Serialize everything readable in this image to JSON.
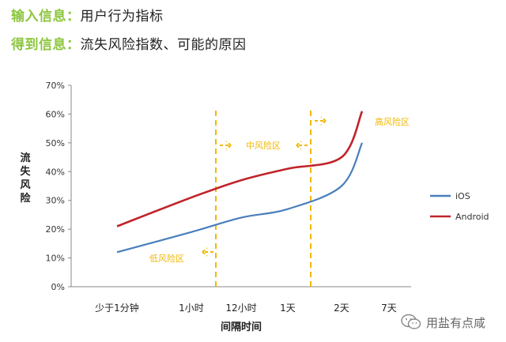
{
  "header": {
    "line1_label": "输入信息：",
    "line1_value": "用户行为指标",
    "line2_label": "得到信息：",
    "line2_value": "流失风险指数、可能的原因"
  },
  "watermark": {
    "text": "用盐有点咸",
    "icon": "wechat-icon"
  },
  "colors": {
    "ios": "#4a7ebb",
    "android": "#c0242a",
    "zone": "#f2b800",
    "accent": "#8dc63f"
  },
  "chart_data": {
    "type": "line",
    "categories": [
      "少于1分钟",
      "1小时",
      "12小时",
      "1天",
      "2天",
      "7天"
    ],
    "ylabel": "流失风险",
    "xlabel": "间隔时间",
    "ylim": [
      0,
      70
    ],
    "yticks": [
      "0%",
      "10%",
      "20%",
      "30%",
      "40%",
      "50%",
      "60%",
      "70%"
    ],
    "grid": false,
    "legend": "right",
    "series": [
      {
        "name": "iOS",
        "values": [
          12,
          19,
          24,
          27,
          35,
          50
        ]
      },
      {
        "name": "Android",
        "values": [
          21,
          31,
          37,
          41,
          45,
          61
        ]
      }
    ],
    "zones": [
      {
        "label": "低风险区",
        "arrow": "left"
      },
      {
        "label": "中风险区",
        "arrow": "both"
      },
      {
        "label": "高风险区",
        "arrow": "right"
      }
    ]
  }
}
